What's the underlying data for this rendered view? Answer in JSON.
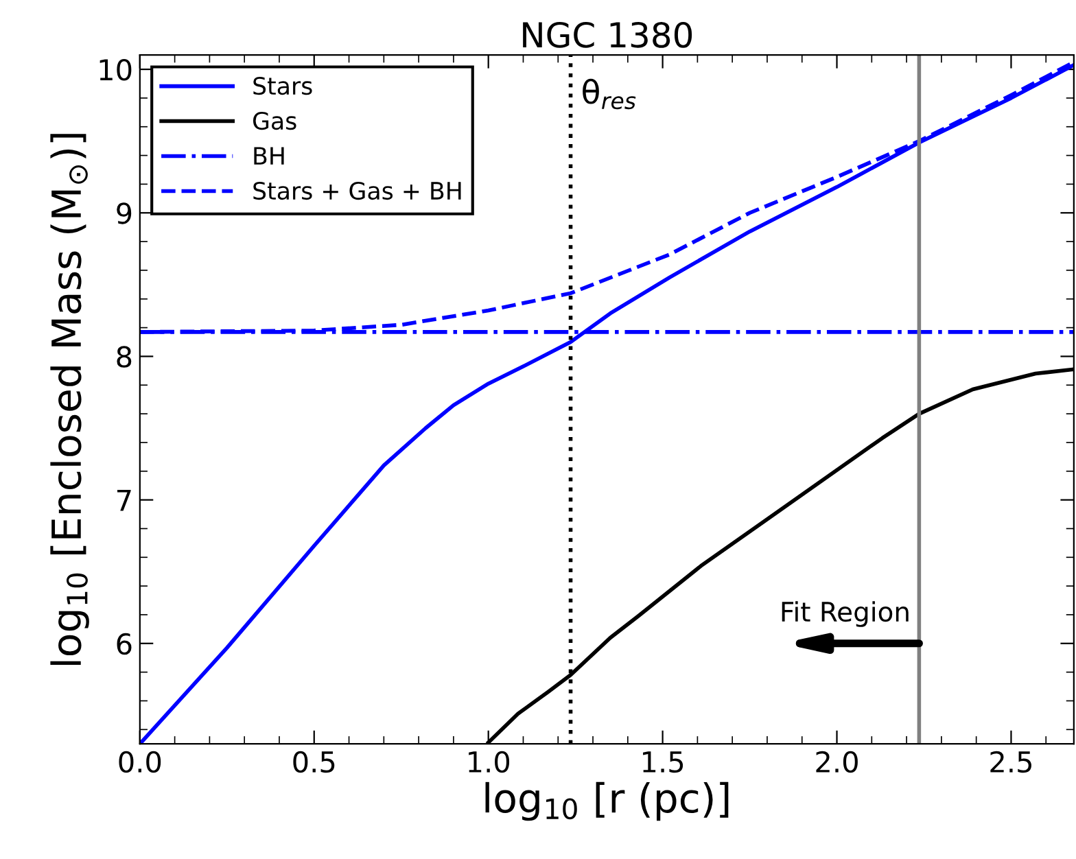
{
  "chart_data": {
    "type": "line",
    "title": "NGC 1380",
    "xlabel": "log$_{10}$ [r (pc)]",
    "ylabel": "log$_{10}$ [Enclosed Mass (M$_{⊙}$)]",
    "xlim": [
      0,
      2.68
    ],
    "ylim": [
      5.3,
      10.1
    ],
    "xticks": [
      {
        "value": 0,
        "label": "0.0"
      },
      0.5,
      {
        "value": 1,
        "label": "1.0"
      },
      1.5,
      {
        "value": 2,
        "label": "2.0"
      },
      2.5
    ],
    "yticks": [
      6,
      7,
      8,
      9,
      10
    ],
    "legend": "top left",
    "grid": false,
    "series": [
      {
        "name": "Stars",
        "color": "#0000ff",
        "line_style": "solid",
        "x": [
          0,
          0.25,
          0.5,
          0.7,
          0.82,
          0.9,
          1.0,
          1.1,
          1.236,
          1.35,
          1.52,
          1.75,
          2.0,
          2.236,
          2.5,
          2.68
        ],
        "values": [
          5.3,
          5.97,
          6.68,
          7.24,
          7.5,
          7.66,
          7.81,
          7.93,
          8.1,
          8.3,
          8.55,
          8.87,
          9.18,
          9.49,
          9.8,
          10.03
        ]
      },
      {
        "name": "Gas",
        "color": "#000000",
        "line_style": "solid",
        "x": [
          1.0,
          1.085,
          1.17,
          1.236,
          1.35,
          1.43,
          1.61,
          2.13,
          2.236,
          2.39,
          2.57,
          2.68
        ],
        "values": [
          5.31,
          5.51,
          5.66,
          5.78,
          6.04,
          6.19,
          6.54,
          7.43,
          7.6,
          7.77,
          7.88,
          7.91
        ]
      },
      {
        "name": "BH",
        "color": "#0000ff",
        "line_style": "dashdot",
        "x": [
          0,
          2.68
        ],
        "values": [
          8.17,
          8.17
        ]
      },
      {
        "name": "Stars + Gas + BH",
        "color": "#0000ff",
        "line_style": "dashed",
        "x": [
          0,
          0.5,
          0.75,
          1.0,
          1.236,
          1.52,
          1.75,
          2.0,
          2.236,
          2.5,
          2.68
        ],
        "values": [
          8.17,
          8.18,
          8.22,
          8.32,
          8.44,
          8.71,
          9.0,
          9.25,
          9.5,
          9.82,
          10.05
        ]
      }
    ],
    "ref_lines": [
      {
        "axis": "x",
        "value": 1.236,
        "label": "θ$_{res}$",
        "color": "#000000",
        "line_style": "dotted"
      },
      {
        "axis": "x",
        "value": 2.236,
        "color": "#808080",
        "line_style": "solid"
      }
    ],
    "annotations": [
      {
        "text": "Fit Region",
        "x": 2.236,
        "y": 6.0
      }
    ]
  }
}
